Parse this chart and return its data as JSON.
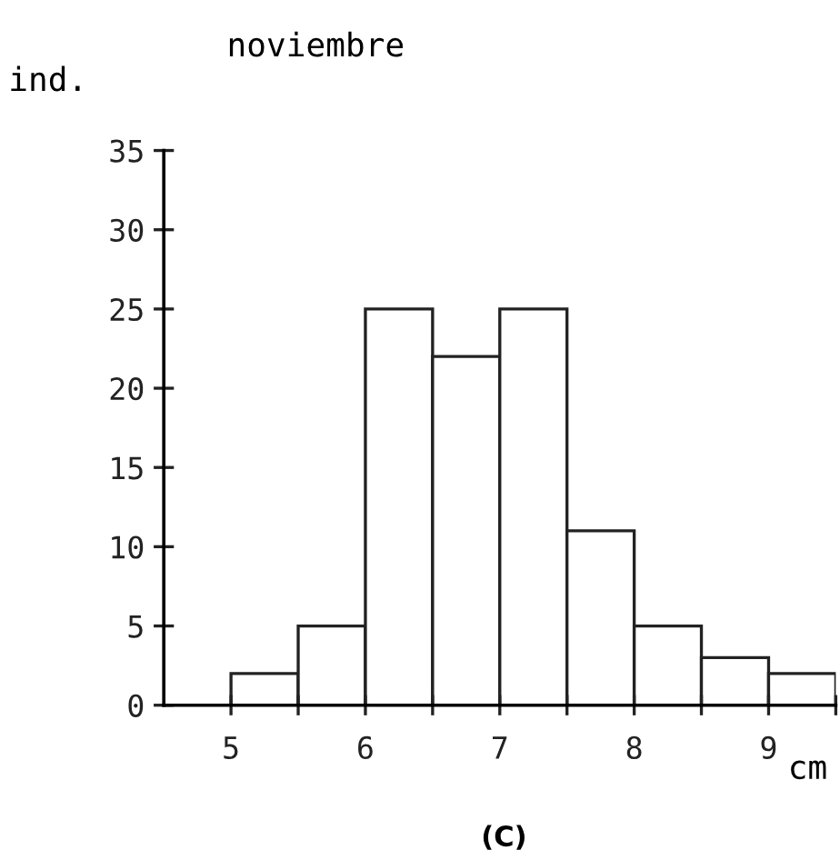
{
  "chart_data": {
    "type": "histogram",
    "title": "noviembre",
    "ylabel": "ind.",
    "xlabel": "cm",
    "annotations": [
      "(C)"
    ],
    "bins": [
      5,
      5.5,
      6,
      6.5,
      7,
      7.5,
      8,
      8.5,
      9,
      9.5
    ],
    "values": [
      2,
      5,
      25,
      22,
      25,
      11,
      5,
      3,
      2
    ],
    "color": "#ffffff",
    "xlim": [
      4.5,
      9.5
    ],
    "xticks": [
      5,
      {
        "value": 5.5,
        "label": null
      },
      6,
      {
        "value": 6.5,
        "label": null
      },
      7,
      {
        "value": 7.5,
        "label": null
      },
      8,
      {
        "value": 8.5,
        "label": null
      },
      9,
      {
        "value": 9.5,
        "label": null
      }
    ],
    "ylim": [
      0,
      35
    ],
    "yticks": [
      0,
      5,
      10,
      15,
      20,
      25,
      30,
      35
    ],
    "grid": false,
    "legend": false
  }
}
